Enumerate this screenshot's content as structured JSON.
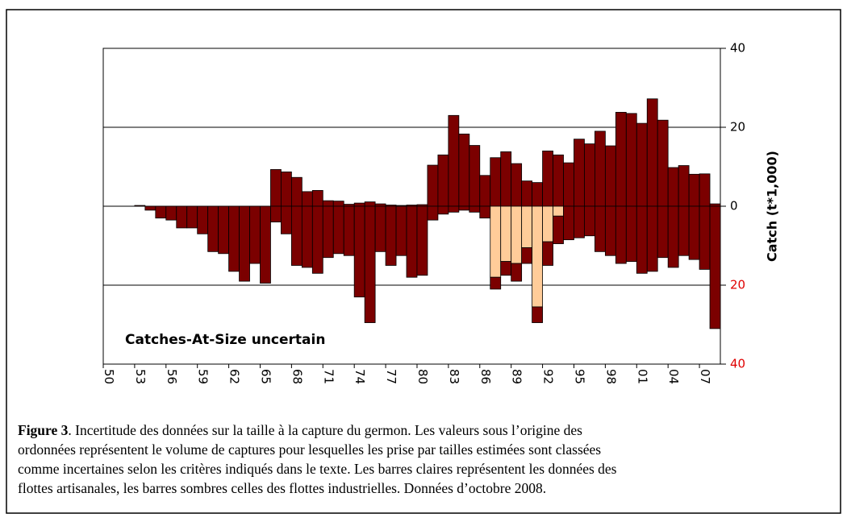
{
  "chart_data": {
    "type": "bar",
    "annotation": "Catches-At-Size uncertain",
    "y_label": "Catch (t*1,000)",
    "categories": [
      "50",
      null,
      null,
      "53",
      null,
      null,
      "56",
      null,
      null,
      "59",
      null,
      null,
      "62",
      null,
      null,
      "65",
      null,
      null,
      "68",
      null,
      null,
      "71",
      null,
      null,
      "74",
      null,
      null,
      "77",
      null,
      null,
      "80",
      null,
      null,
      "83",
      null,
      null,
      "86",
      null,
      null,
      "89",
      null,
      null,
      "92",
      null,
      null,
      "95",
      null,
      null,
      "98",
      null,
      null,
      "01",
      null,
      null,
      "04",
      null,
      null,
      "07",
      null
    ],
    "series": [
      {
        "color": "#7b0000",
        "values": [
          null,
          null,
          null,
          0.2,
          null,
          null,
          null,
          null,
          null,
          null,
          null,
          null,
          null,
          null,
          null,
          null,
          9.3,
          8.7,
          7.3,
          3.7,
          4,
          1.4,
          1.3,
          0.5,
          0.8,
          1.1,
          0.6,
          0.3,
          0.2,
          0.3,
          0.4,
          10.4,
          13,
          23,
          18.3,
          15.4,
          7.8,
          12.3,
          13.8,
          10.8,
          6.4,
          6,
          14,
          13,
          11,
          17,
          15.8,
          19,
          15.3,
          23.8,
          23.5,
          21,
          27.2,
          21.8,
          9.8,
          10.3,
          8.1,
          8.2,
          0.6
        ]
      },
      {
        "color": "#ffcc99",
        "values": [
          null,
          null,
          null,
          null,
          null,
          null,
          null,
          null,
          null,
          null,
          null,
          null,
          null,
          null,
          null,
          null,
          null,
          null,
          null,
          null,
          null,
          null,
          null,
          null,
          null,
          null,
          null,
          null,
          null,
          null,
          null,
          null,
          null,
          null,
          null,
          null,
          null,
          -18,
          -14,
          -14.5,
          -10.5,
          -25.5,
          -9,
          -2.5,
          null,
          null,
          null,
          null,
          null,
          null,
          null,
          null,
          null,
          null,
          null,
          null,
          null,
          null,
          null
        ]
      },
      {
        "color": "#7b0000",
        "values": [
          null,
          null,
          null,
          null,
          -1,
          -3,
          -3.5,
          -5.5,
          -5.5,
          -7,
          -11.5,
          -12,
          -16.5,
          -19,
          -14.5,
          -19.5,
          -4,
          -7,
          -15,
          -15.5,
          -17,
          -13,
          -12,
          -12.5,
          -23,
          -29.5,
          -11.5,
          -15,
          -12.5,
          -18,
          -17.5,
          -3.5,
          -2,
          -1.5,
          -1,
          -1.5,
          -3,
          -3,
          -3.5,
          -4.5,
          -4,
          -4,
          -6,
          -7,
          -8.5,
          -8,
          -7.5,
          -11.5,
          -12.5,
          -14.5,
          -14,
          -17,
          -16.5,
          -13,
          -15.5,
          -12.5,
          -13.5,
          -16,
          -31
        ]
      }
    ],
    "ylim": [
      -40,
      40
    ],
    "yticks": [
      40,
      20,
      0,
      {
        "value": -20,
        "label": "20"
      },
      {
        "value": -40,
        "label": "40"
      }
    ],
    "ytick_colors": [
      "#000000",
      "#000000",
      "#000000",
      "#e00000",
      "#e00000"
    ],
    "grid": true
  },
  "caption": {
    "label": "Figure 3",
    "lines": [
      ". Incertitude des données sur la taille à la capture du germon. Les valeurs sous l’origine des",
      "ordonnées représentent le volume de captures pour lesquelles les prise par tailles estimées sont classées",
      "comme incertaines selon les critères indiqués dans le texte. Les barres claires représentent les données des",
      "flottes artisanales, les barres sombres celles des flottes industrielles. Données d’octobre 2008."
    ]
  }
}
